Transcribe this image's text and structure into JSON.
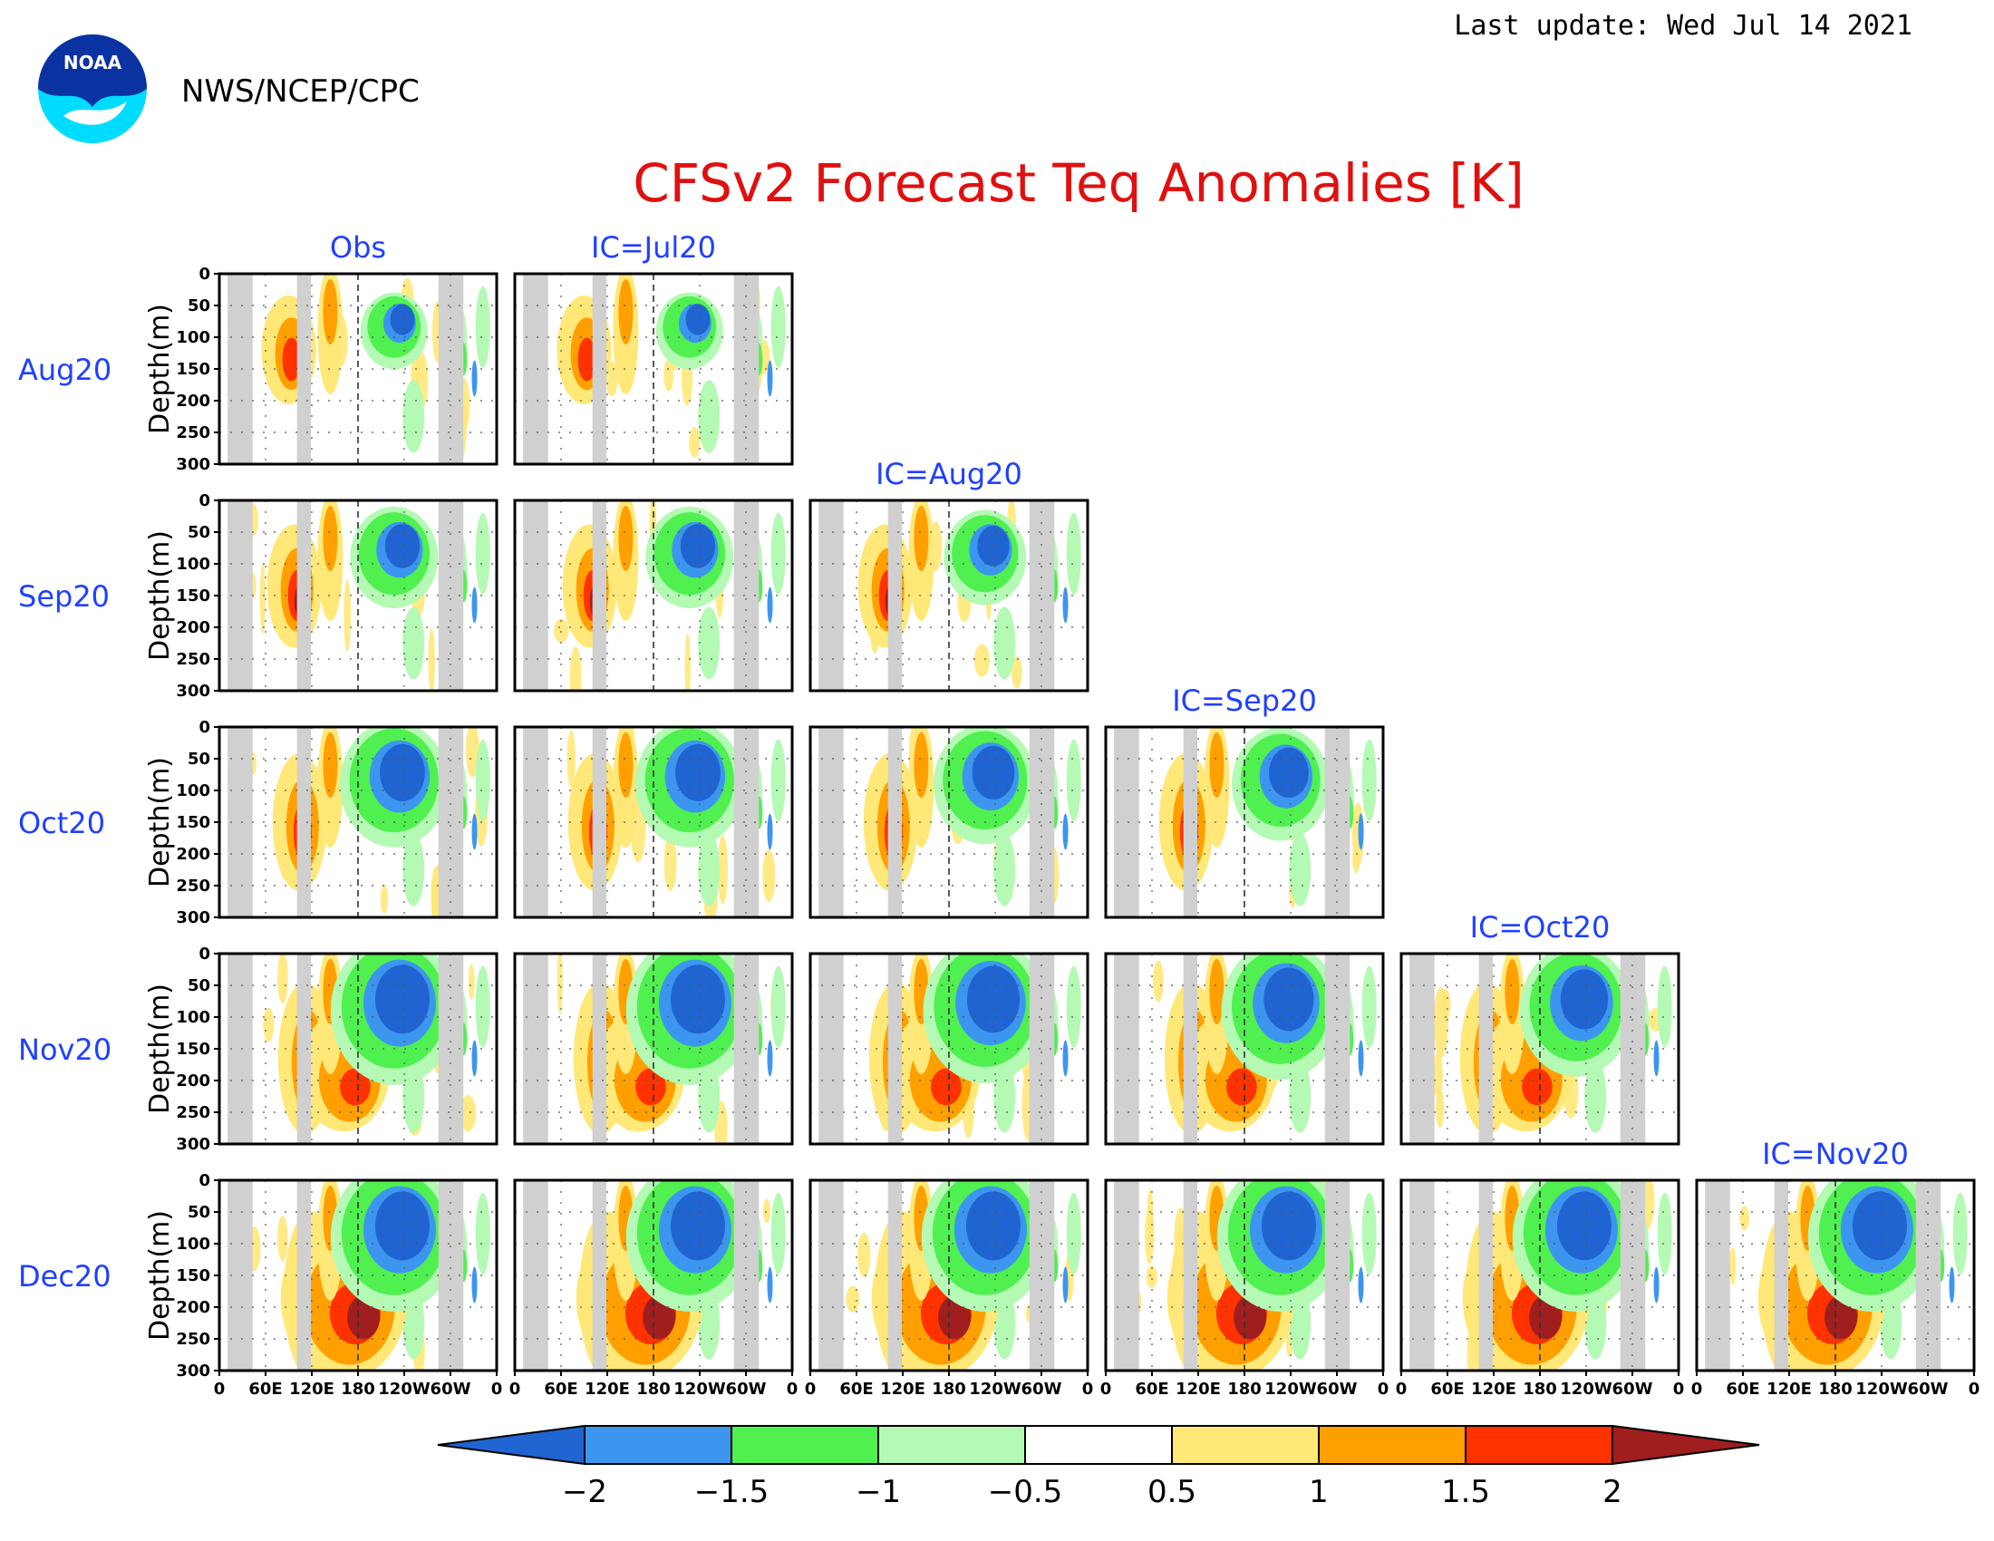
{
  "header": {
    "agency": "NWS/NCEP/CPC",
    "last_update": "Last update: Wed Jul 14 2021",
    "logo_text": "NOAA"
  },
  "chart_data": {
    "type": "heatmap",
    "title": "CFSv2 Forecast Teq Anomalies [K]",
    "ylabel": "Depth(m)",
    "ylim": [
      0,
      300
    ],
    "yticks": [
      "0",
      "50",
      "100",
      "150",
      "200",
      "250",
      "300"
    ],
    "xticks": [
      "0",
      "60E",
      "120E",
      "180",
      "120W",
      "60W",
      "0"
    ],
    "rows": [
      "Aug20",
      "Sep20",
      "Oct20",
      "Nov20",
      "Dec20"
    ],
    "columns": [
      "Obs",
      "IC=Jul20",
      "IC=Aug20",
      "IC=Sep20",
      "IC=Oct20",
      "IC=Nov20"
    ],
    "colorbar": {
      "levels": [
        "-2",
        "-1.5",
        "-1",
        "-0.5",
        "0.5",
        "1",
        "1.5",
        "2"
      ],
      "colors": [
        "#1f64d0",
        "#3c96f0",
        "#50f050",
        "#b4fab4",
        "#ffffff",
        "#ffe878",
        "#ffa000",
        "#ff3200",
        "#a01e1e"
      ]
    },
    "land_color": "#d0d0d0"
  }
}
